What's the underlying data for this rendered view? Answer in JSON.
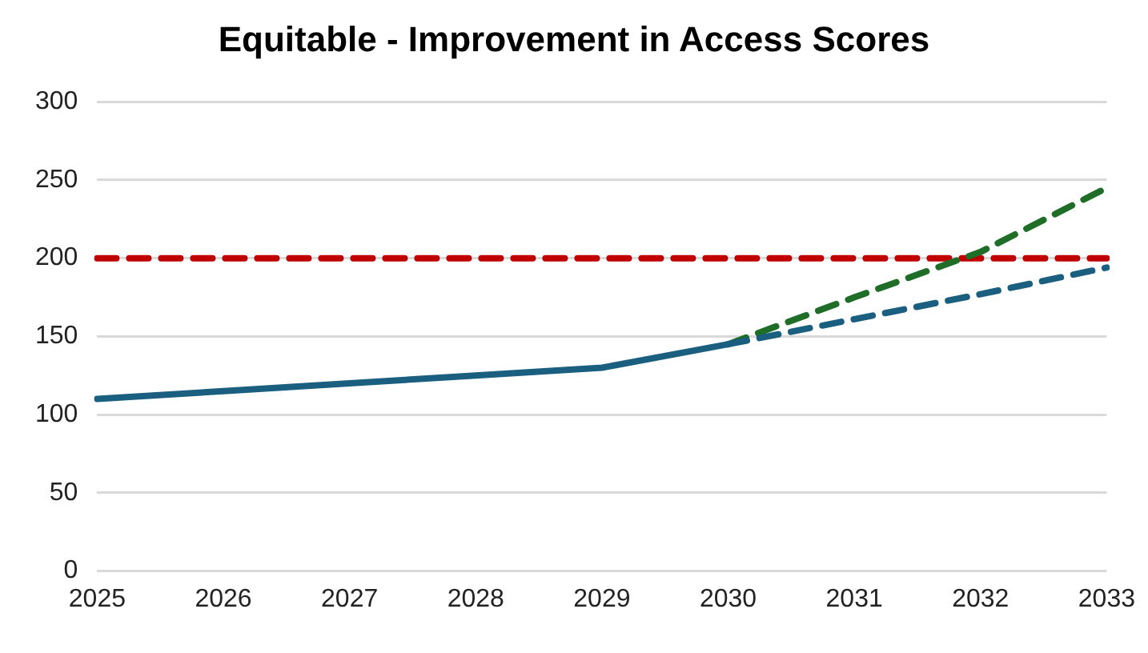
{
  "chart_data": {
    "type": "line",
    "title": "Equitable - Improvement in Access Scores",
    "categories": [
      "2025",
      "2026",
      "2027",
      "2028",
      "2029",
      "2030",
      "2031",
      "2032",
      "2033"
    ],
    "series": [
      {
        "color": "#1a5f80",
        "line_style": "solid",
        "values": [
          110,
          115,
          120,
          125,
          130,
          145,
          null,
          null,
          null
        ]
      },
      {
        "color": "#1a5f80",
        "line_style": "dashed",
        "values": [
          null,
          null,
          null,
          null,
          null,
          145,
          161,
          177,
          194
        ]
      },
      {
        "color": "#1e6e28",
        "line_style": "dashed",
        "values": [
          null,
          null,
          null,
          null,
          null,
          145,
          175,
          204,
          245
        ]
      },
      {
        "color": "#c00000",
        "line_style": "dashed",
        "values": [
          200,
          200,
          200,
          200,
          200,
          200,
          200,
          200,
          200
        ]
      }
    ],
    "ylim": [
      0,
      300
    ],
    "yticks": [
      0,
      50,
      100,
      150,
      200,
      250,
      300
    ],
    "grid": "y",
    "legend": false,
    "marker": "none"
  }
}
